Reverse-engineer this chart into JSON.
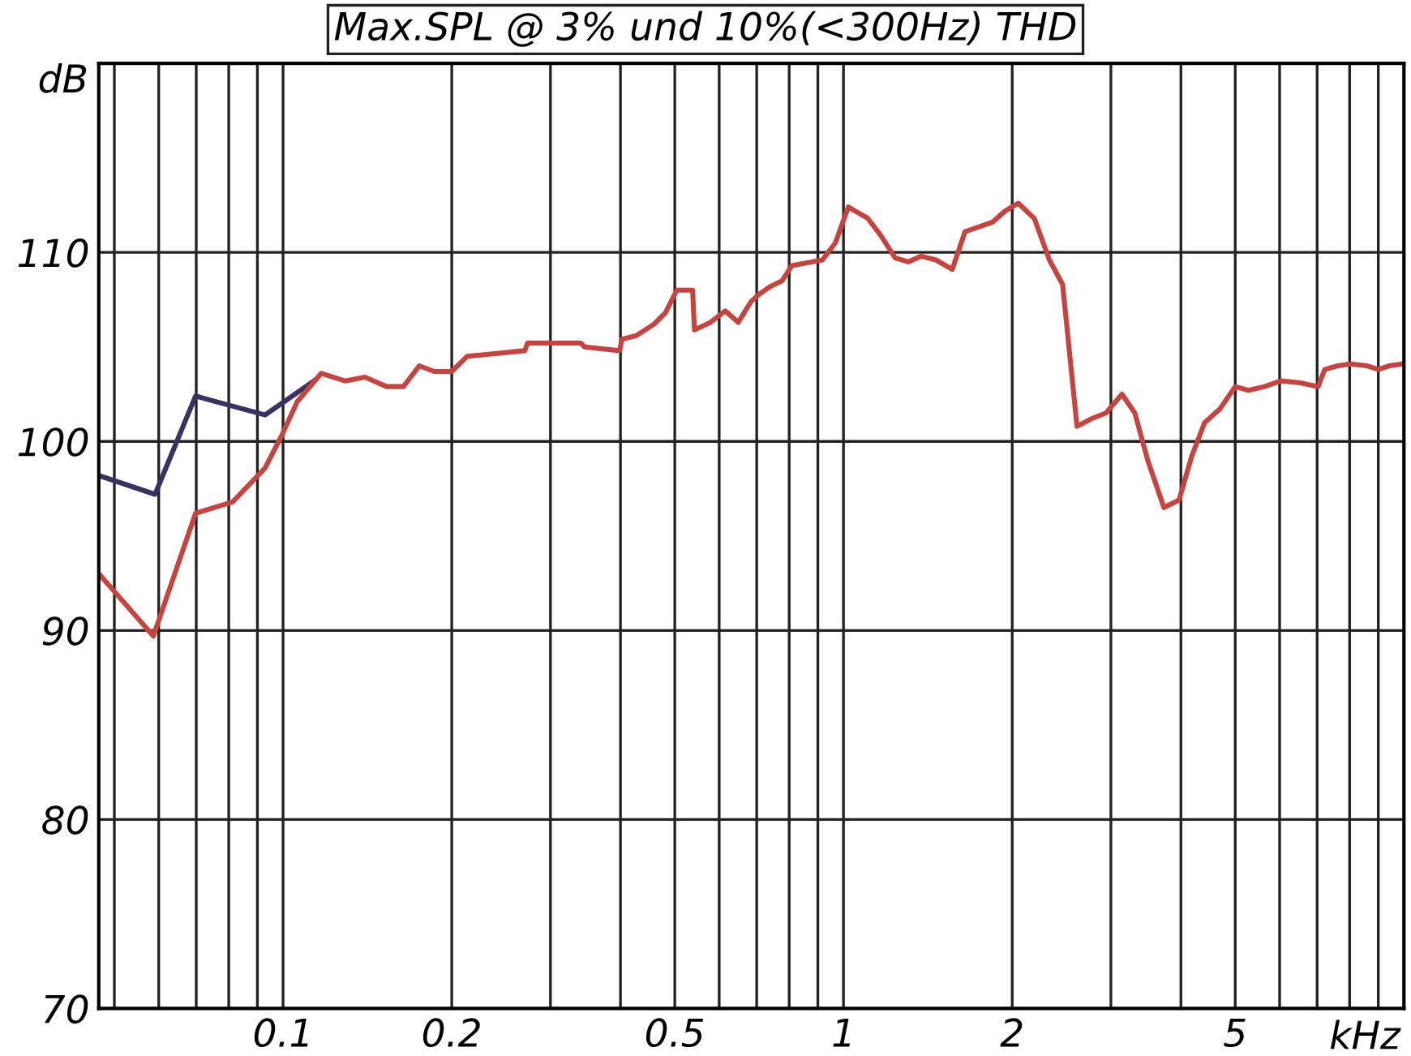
{
  "chart_data": {
    "type": "line",
    "title": "Max.SPL @ 3% und 10%(<300Hz) THD",
    "xlabel": "kHz",
    "ylabel": "dB",
    "log": "x",
    "xlim": [
      0.0469,
      10
    ],
    "ylim": [
      70,
      120
    ],
    "xticks": [
      {
        "value": 0.05,
        "label": null
      },
      {
        "value": 0.06,
        "label": null
      },
      {
        "value": 0.07,
        "label": null
      },
      {
        "value": 0.08,
        "label": null
      },
      {
        "value": 0.09,
        "label": null
      },
      0.1,
      0.2,
      {
        "value": 0.3,
        "label": null
      },
      {
        "value": 0.4,
        "label": null
      },
      0.5,
      {
        "value": 0.6,
        "label": null
      },
      {
        "value": 0.7,
        "label": null
      },
      {
        "value": 0.8,
        "label": null
      },
      {
        "value": 0.9,
        "label": null
      },
      1,
      2,
      {
        "value": 3,
        "label": null
      },
      {
        "value": 4,
        "label": null
      },
      5,
      {
        "value": 6,
        "label": null
      },
      {
        "value": 7,
        "label": null
      },
      {
        "value": 8,
        "label": null
      },
      {
        "value": 9,
        "label": null
      }
    ],
    "yticks": [
      70,
      80,
      90,
      100,
      110
    ],
    "grid": true,
    "legend": false,
    "marker": "none",
    "line_style": "solid",
    "series": [
      {
        "color": "#3a3062",
        "x": [
          0.0469,
          0.0591,
          0.0698,
          0.0929,
          0.1135
        ],
        "values": [
          98.2,
          97.2,
          102.4,
          101.4,
          103.2
        ]
      },
      {
        "color": "#c8423e",
        "x": [
          0.0469,
          0.0587,
          0.0698,
          0.0813,
          0.0929,
          0.0994,
          0.106,
          0.117,
          0.129,
          0.14,
          0.153,
          0.164,
          0.175,
          0.186,
          0.2,
          0.213,
          0.231,
          0.27,
          0.273,
          0.34,
          0.345,
          0.399,
          0.402,
          0.427,
          0.459,
          0.481,
          0.504,
          0.538,
          0.542,
          0.579,
          0.615,
          0.649,
          0.684,
          0.708,
          0.741,
          0.777,
          0.809,
          0.917,
          0.967,
          1.02,
          1.105,
          1.165,
          1.237,
          1.305,
          1.376,
          1.462,
          1.563,
          1.648,
          1.845,
          1.945,
          2.05,
          2.19,
          2.33,
          2.46,
          2.61,
          2.77,
          2.94,
          3.14,
          3.31,
          3.49,
          3.73,
          3.97,
          4.18,
          4.41,
          4.69,
          5.0,
          5.28,
          5.64,
          6.03,
          6.53,
          7.03,
          7.22,
          7.62,
          8.03,
          8.59,
          9.0,
          9.42,
          9.94
        ],
        "values": [
          93.0,
          89.7,
          96.2,
          96.8,
          98.6,
          100.3,
          102.1,
          103.6,
          103.2,
          103.4,
          102.9,
          102.9,
          104.0,
          103.7,
          103.7,
          104.5,
          104.6,
          104.8,
          105.2,
          105.2,
          105.0,
          104.8,
          105.4,
          105.6,
          106.2,
          106.8,
          108.0,
          108.0,
          105.9,
          106.3,
          106.9,
          106.3,
          107.4,
          107.8,
          108.2,
          108.5,
          109.3,
          109.6,
          110.5,
          112.4,
          111.8,
          110.9,
          109.7,
          109.5,
          109.8,
          109.6,
          109.1,
          111.1,
          111.6,
          112.2,
          112.6,
          111.8,
          109.6,
          108.3,
          100.8,
          101.2,
          101.5,
          102.5,
          101.5,
          99.0,
          96.5,
          96.9,
          99.2,
          101.0,
          101.7,
          102.9,
          102.7,
          102.9,
          103.2,
          103.1,
          102.9,
          103.8,
          104.0,
          104.1,
          104.0,
          103.8,
          104.0,
          104.1
        ]
      }
    ]
  }
}
